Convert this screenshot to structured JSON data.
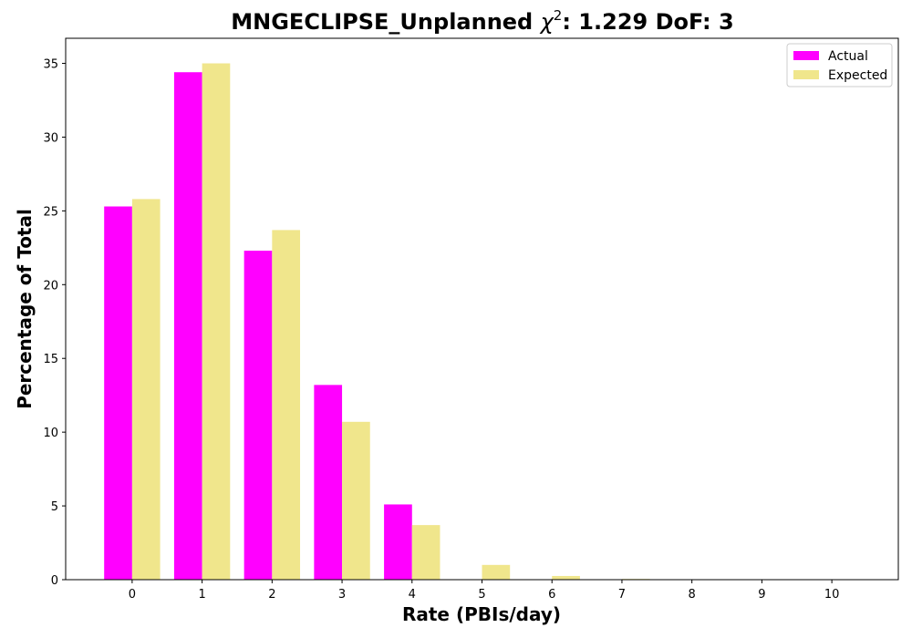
{
  "chart_data": {
    "type": "bar",
    "title_main": "MNGECLIPSE_Unplanned ",
    "title_chi": "χ",
    "title_sup": "2",
    "title_tail": ": 1.229 DoF: 3",
    "xlabel": "Rate (PBIs/day)",
    "ylabel": "Percentage of Total",
    "categories": [
      "0",
      "1",
      "2",
      "3",
      "4",
      "5",
      "6",
      "7",
      "8",
      "9",
      "10"
    ],
    "series": [
      {
        "name": "Actual",
        "color": "#ff00ff",
        "values": [
          25.3,
          34.4,
          22.3,
          13.2,
          5.1,
          0,
          0,
          0,
          0,
          0,
          0
        ]
      },
      {
        "name": "Expected",
        "color": "#f0e68c",
        "values": [
          25.8,
          35.0,
          23.7,
          10.7,
          3.7,
          1.0,
          0.25,
          0.05,
          0.01,
          0,
          0
        ]
      }
    ],
    "yticks": [
      "0",
      "5",
      "10",
      "15",
      "20",
      "25",
      "30",
      "35"
    ],
    "ylim": [
      0,
      36.7
    ],
    "xlim": [
      -0.95,
      10.95
    ],
    "legend_position": "top-right",
    "grid": false
  }
}
